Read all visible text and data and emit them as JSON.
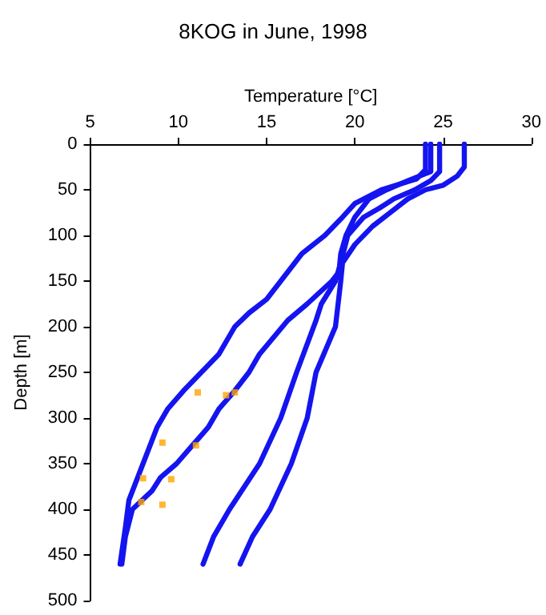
{
  "chart_data": {
    "type": "line",
    "title": "8KOG in June, 1998",
    "xlabel": "Temperature [°C]",
    "ylabel": "Depth [m]",
    "xlim": [
      5,
      30
    ],
    "xticks": [
      5,
      10,
      15,
      20,
      25,
      30
    ],
    "ylim": [
      500,
      0
    ],
    "yticks": [
      0,
      50,
      100,
      150,
      200,
      250,
      300,
      350,
      400,
      450,
      500
    ],
    "grid": false,
    "marker": "none",
    "line_style": "solid",
    "series": [
      {
        "color": "#1414f0",
        "x": [
          24.0,
          24.0,
          23.5,
          21.5,
          20.0,
          19.3,
          18.3,
          17.0,
          15.8,
          15.0,
          14.0,
          13.2,
          12.3,
          11.3,
          10.3,
          9.4,
          8.8,
          8.0,
          7.2,
          7.0,
          6.7
        ],
        "values": [
          0,
          28,
          38,
          50,
          65,
          80,
          100,
          120,
          150,
          170,
          185,
          200,
          230,
          250,
          270,
          290,
          310,
          350,
          390,
          420,
          460
        ]
      },
      {
        "color": "#1414f0",
        "x": [
          24.3,
          24.3,
          23.0,
          21.8,
          20.8,
          20.0,
          19.5,
          19.2,
          19.1,
          18.7,
          17.3,
          16.2,
          14.6,
          14.0,
          13.2,
          12.3,
          11.7,
          10.8,
          9.9,
          9.0,
          8.5,
          7.4,
          7.0,
          6.8
        ],
        "values": [
          0,
          30,
          40,
          50,
          60,
          80,
          100,
          120,
          140,
          150,
          175,
          193,
          230,
          250,
          270,
          290,
          310,
          330,
          350,
          365,
          380,
          400,
          430,
          460
        ]
      },
      {
        "color": "#1414f0",
        "x": [
          24.8,
          24.8,
          24.3,
          23.4,
          22.2,
          21.4,
          20.5,
          19.6,
          19.2,
          18.9,
          18.1,
          17.8,
          16.7,
          15.8,
          14.6,
          12.9,
          12.0,
          11.4
        ],
        "values": [
          0,
          30,
          40,
          50,
          60,
          70,
          80,
          100,
          130,
          150,
          175,
          193,
          250,
          300,
          350,
          400,
          430,
          460
        ]
      },
      {
        "color": "#1414f0",
        "x": [
          26.2,
          26.2,
          25.8,
          25.0,
          24.0,
          23.0,
          22.0,
          21.0,
          20.0,
          19.3,
          19.2,
          18.9,
          17.8,
          17.3,
          16.4,
          15.2,
          14.2,
          13.5
        ],
        "values": [
          0,
          25,
          35,
          45,
          50,
          60,
          75,
          90,
          110,
          130,
          150,
          200,
          250,
          300,
          350,
          400,
          430,
          460
        ]
      },
      {
        "type": "scatter",
        "marker": "square",
        "color": "#ffa500",
        "x": [
          11.1,
          12.7,
          13.2,
          9.1,
          11.0,
          8.0,
          9.6,
          7.9,
          9.1
        ],
        "values": [
          272,
          275,
          272,
          327,
          330,
          366,
          367,
          392,
          395
        ]
      }
    ]
  }
}
